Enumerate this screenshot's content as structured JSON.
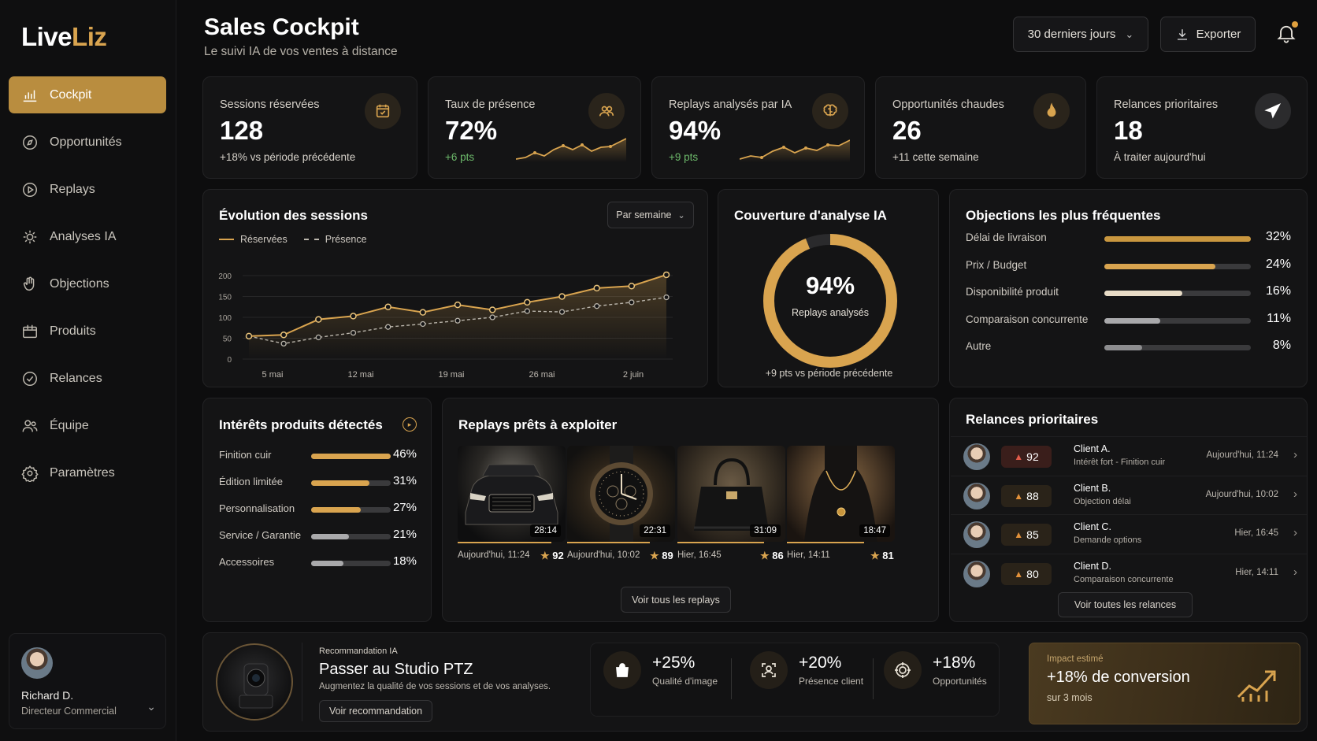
{
  "app": {
    "logo_part1": "Live",
    "logo_part2": "Liz"
  },
  "sidebar": {
    "items": [
      {
        "label": "Cockpit",
        "icon": "chart-icon"
      },
      {
        "label": "Opportunités",
        "icon": "compass-icon"
      },
      {
        "label": "Replays",
        "icon": "play-icon"
      },
      {
        "label": "Analyses IA",
        "icon": "ai-chip-icon"
      },
      {
        "label": "Objections",
        "icon": "hand-icon"
      },
      {
        "label": "Produits",
        "icon": "box-icon"
      },
      {
        "label": "Relances",
        "icon": "check-circle-icon"
      },
      {
        "label": "Équipe",
        "icon": "team-icon"
      },
      {
        "label": "Paramètres",
        "icon": "gear-icon"
      }
    ],
    "user": {
      "name": "Richard D.",
      "role": "Directeur Commercial"
    }
  },
  "header": {
    "title": "Sales Cockpit",
    "subtitle": "Le suivi IA de vos ventes à distance",
    "period": "30 derniers jours",
    "export": "Exporter"
  },
  "kpis": [
    {
      "label": "Sessions réservées",
      "value": "128",
      "delta": "+18% vs période précédente",
      "icon": "calendar-icon"
    },
    {
      "label": "Taux de présence",
      "value": "72%",
      "delta": "+6 pts",
      "icon": "people-icon"
    },
    {
      "label": "Replays analysés par IA",
      "value": "94%",
      "delta": "+9 pts",
      "icon": "brain-icon"
    },
    {
      "label": "Opportunités chaudes",
      "value": "26",
      "delta": "+11 cette semaine",
      "icon": "flame-icon"
    },
    {
      "label": "Relances prioritaires",
      "value": "18",
      "delta": "À traiter aujourd'hui",
      "icon": "send-icon"
    }
  ],
  "sessions": {
    "title": "Évolution des sessions",
    "granularity": "Par semaine",
    "legend_reserved": "Réservées",
    "legend_presence": "Présence"
  },
  "chart_data": {
    "type": "line",
    "x_ticks": [
      "5 mai",
      "12 mai",
      "19 mai",
      "26 mai",
      "2 juin"
    ],
    "y_ticks": [
      0,
      50,
      100,
      150,
      200
    ],
    "ylim": [
      0,
      200
    ],
    "series": [
      {
        "name": "Réservées",
        "values": [
          55,
          58,
          95,
          103,
          125,
          112,
          130,
          118,
          136,
          150,
          170,
          175,
          202
        ]
      },
      {
        "name": "Présence",
        "values": [
          55,
          37,
          52,
          63,
          77,
          84,
          92,
          100,
          115,
          113,
          127,
          136,
          148
        ]
      }
    ],
    "grid": true,
    "legend": "top-left"
  },
  "coverage": {
    "title": "Couverture d'analyse IA",
    "value": "94%",
    "percent": 94,
    "label": "Replays analysés",
    "delta": "+9 pts vs période précédente"
  },
  "objections": {
    "title": "Objections les plus fréquentes",
    "items": [
      {
        "label": "Délai de livraison",
        "pct": "32%",
        "fill": 1.0,
        "color": "#c9973f"
      },
      {
        "label": "Prix / Budget",
        "pct": "24%",
        "fill": 0.76,
        "color": "#d9a44f"
      },
      {
        "label": "Disponibilité produit",
        "pct": "16%",
        "fill": 0.53,
        "color": "#e8dcc6"
      },
      {
        "label": "Comparaison concurrente",
        "pct": "11%",
        "fill": 0.38,
        "color": "#a9a9ab"
      },
      {
        "label": "Autre",
        "pct": "8%",
        "fill": 0.26,
        "color": "#8d8d8f"
      }
    ]
  },
  "interests": {
    "title": "Intérêts produits détectés",
    "items": [
      {
        "label": "Finition cuir",
        "pct": "46%",
        "fill": 1.0,
        "color": "#d9a44f"
      },
      {
        "label": "Édition limitée",
        "pct": "31%",
        "fill": 0.73,
        "color": "#d9a44f"
      },
      {
        "label": "Personnalisation",
        "pct": "27%",
        "fill": 0.62,
        "color": "#d9a44f"
      },
      {
        "label": "Service / Garantie",
        "pct": "21%",
        "fill": 0.48,
        "color": "#a9a9ab"
      },
      {
        "label": "Accessoires",
        "pct": "18%",
        "fill": 0.41,
        "color": "#a9a9ab"
      }
    ]
  },
  "replays": {
    "title": "Replays prêts à exploiter",
    "items": [
      {
        "duration": "28:14",
        "date": "Aujourd'hui, 11:24",
        "score": "92",
        "kind": "car"
      },
      {
        "duration": "22:31",
        "date": "Aujourd'hui, 10:02",
        "score": "89",
        "kind": "watch"
      },
      {
        "duration": "31:09",
        "date": "Hier, 16:45",
        "score": "86",
        "kind": "bag"
      },
      {
        "duration": "18:47",
        "date": "Hier, 14:11",
        "score": "81",
        "kind": "necklace"
      }
    ],
    "see_all": "Voir tous les replays"
  },
  "followups": {
    "title": "Relances prioritaires",
    "items": [
      {
        "score": "92",
        "name": "Client A.",
        "desc": "Intérêt fort - Finition cuir",
        "time": "Aujourd'hui, 11:24",
        "hot": true
      },
      {
        "score": "88",
        "name": "Client B.",
        "desc": "Objection délai",
        "time": "Aujourd'hui, 10:02",
        "hot": false
      },
      {
        "score": "85",
        "name": "Client C.",
        "desc": "Demande options",
        "time": "Hier, 16:45",
        "hot": false
      },
      {
        "score": "80",
        "name": "Client D.",
        "desc": "Comparaison concurrente",
        "time": "Hier, 14:11",
        "hot": false
      }
    ],
    "see_all": "Voir toutes les relances"
  },
  "reco": {
    "tag": "Recommandation IA",
    "title": "Passer au Studio PTZ",
    "desc": "Augmentez la qualité de vos sessions et de vos analyses.",
    "button": "Voir recommandation",
    "metrics": [
      {
        "value": "+25%",
        "label": "Qualité d'image",
        "icon": "bag-icon"
      },
      {
        "value": "+20%",
        "label": "Présence client",
        "icon": "person-scan-icon"
      },
      {
        "value": "+18%",
        "label": "Opportunités",
        "icon": "target-icon"
      }
    ],
    "impact_label": "Impact estimé",
    "impact_value": "+18% de conversion",
    "impact_sub": "sur 3 mois"
  }
}
